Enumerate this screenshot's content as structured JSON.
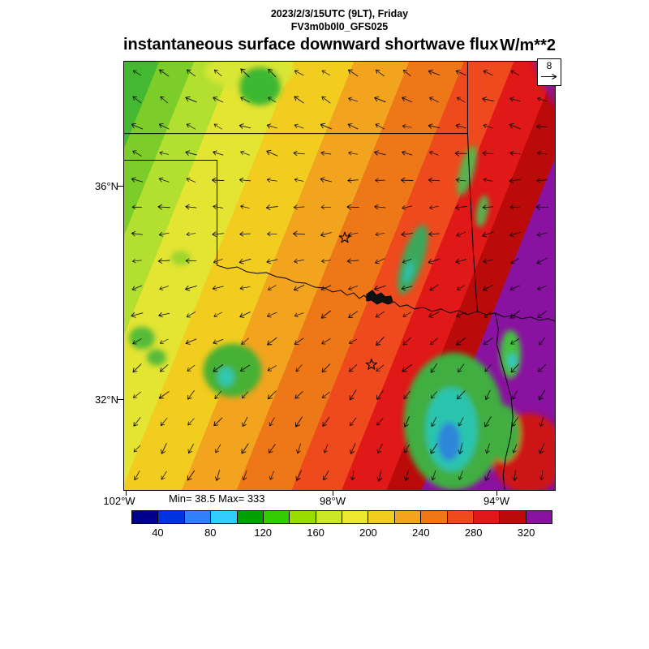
{
  "header": {
    "datetime_line": "2023/2/3/15UTC (9LT), Friday",
    "model_line": "FV3m0b0l0_GFS025",
    "title": "instantaneous surface downward shortwave flux",
    "units": "W/m**2"
  },
  "map": {
    "lat_labels": [
      "36°N",
      "32°N"
    ],
    "lon_labels": [
      "102°W",
      "98°W",
      "94°W"
    ],
    "stats": "Min= 38.5 Max= 333",
    "wind_reference": "8"
  },
  "chart_data": {
    "type": "heatmap",
    "title": "instantaneous surface downward shortwave flux",
    "units": "W/m**2",
    "valid_time": "2023/2/3/15UTC (9LT), Friday",
    "model_run": "FV3m0b0l0_GFS025",
    "stat_min": 38.5,
    "stat_max": 333,
    "colorbar": {
      "tick_labels": [
        "40",
        "80",
        "120",
        "160",
        "200",
        "240",
        "280",
        "320"
      ],
      "segment_colors": [
        "#00008b",
        "#0033e0",
        "#3380ff",
        "#33ccff",
        "#00a000",
        "#33cc00",
        "#99dd00",
        "#cce628",
        "#ece832",
        "#f2cc1e",
        "#f2a41e",
        "#ee7818",
        "#ee4a1e",
        "#e01818",
        "#bb0a0a",
        "#8a12a0"
      ],
      "value_step": 20,
      "range": [
        20,
        340
      ]
    },
    "axes": {
      "lat_ticks": [
        "36°N",
        "32°N"
      ],
      "lon_ticks": [
        "102°W",
        "98°W",
        "94°W"
      ],
      "grid": false
    },
    "overlay": {
      "wind_reference_value": 8,
      "wind_glyph": "arrows",
      "markers": "two star city markers, state boundaries (Oklahoma / Texas / Kansas / Arkansas), Red River"
    }
  }
}
